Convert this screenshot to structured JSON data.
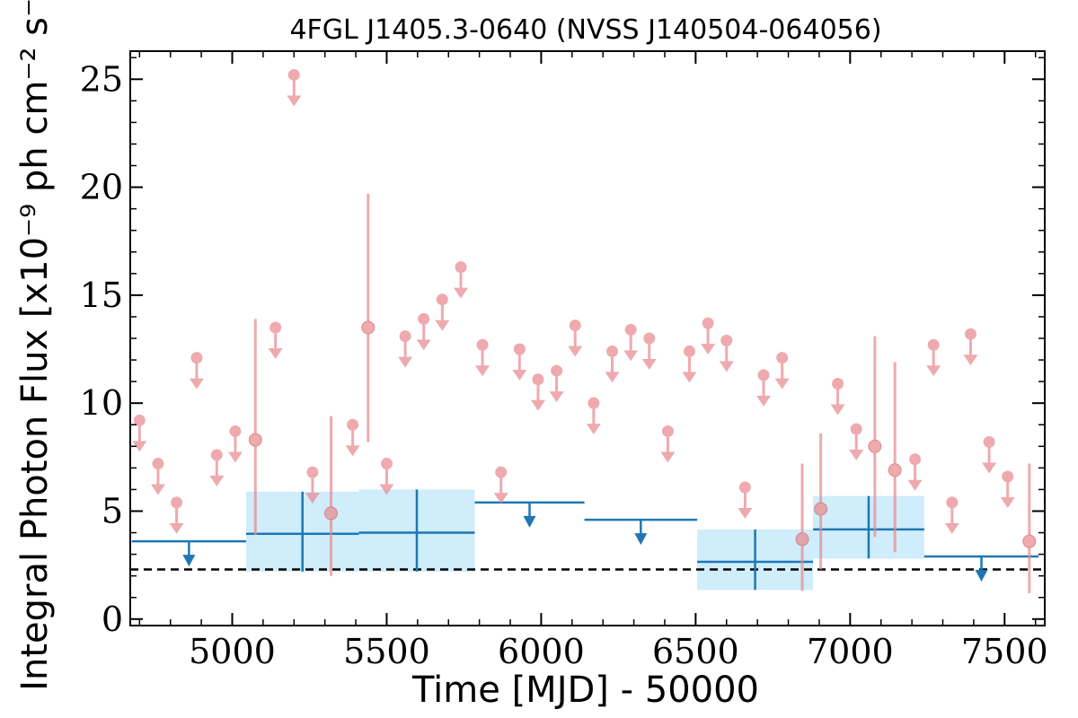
{
  "chart_data": {
    "type": "scatter",
    "title": "4FGL J1405.3-0640 (NVSS J140504-064056)",
    "xlabel": "Time [MJD] - 50000",
    "ylabel": "Integral Photon Flux [x10⁻⁹ ph cm⁻² s⁻¹]",
    "xlim": [
      4670,
      7630
    ],
    "ylim": [
      -0.3,
      26.3
    ],
    "xticks": [
      5000,
      5500,
      6000,
      6500,
      7000,
      7500
    ],
    "yticks": [
      0,
      5,
      10,
      15,
      20,
      25
    ],
    "reference_line": {
      "y": 2.3,
      "style": "dashed",
      "color": "#000000"
    },
    "colors": {
      "fine_bins": "#e88a8f",
      "coarse_bins": "#1f77b4",
      "coarse_band": "#cfedfb"
    },
    "fine_bins_upper_limits": [
      {
        "x": 4700,
        "y": 9.2
      },
      {
        "x": 4760,
        "y": 7.2
      },
      {
        "x": 4820,
        "y": 5.4
      },
      {
        "x": 4885,
        "y": 12.1
      },
      {
        "x": 4950,
        "y": 7.6
      },
      {
        "x": 5010,
        "y": 8.7
      },
      {
        "x": 5140,
        "y": 13.5
      },
      {
        "x": 5200,
        "y": 25.2
      },
      {
        "x": 5260,
        "y": 6.8
      },
      {
        "x": 5390,
        "y": 9.0
      },
      {
        "x": 5500,
        "y": 7.2
      },
      {
        "x": 5560,
        "y": 13.1
      },
      {
        "x": 5620,
        "y": 13.9
      },
      {
        "x": 5680,
        "y": 14.8
      },
      {
        "x": 5740,
        "y": 16.3
      },
      {
        "x": 5810,
        "y": 12.7
      },
      {
        "x": 5870,
        "y": 6.8
      },
      {
        "x": 5930,
        "y": 12.5
      },
      {
        "x": 5990,
        "y": 11.1
      },
      {
        "x": 6050,
        "y": 11.5
      },
      {
        "x": 6110,
        "y": 13.6
      },
      {
        "x": 6170,
        "y": 10.0
      },
      {
        "x": 6230,
        "y": 12.4
      },
      {
        "x": 6290,
        "y": 13.4
      },
      {
        "x": 6350,
        "y": 13.0
      },
      {
        "x": 6410,
        "y": 8.7
      },
      {
        "x": 6480,
        "y": 12.4
      },
      {
        "x": 6540,
        "y": 13.7
      },
      {
        "x": 6600,
        "y": 12.9
      },
      {
        "x": 6660,
        "y": 6.1
      },
      {
        "x": 6720,
        "y": 11.3
      },
      {
        "x": 6780,
        "y": 12.1
      },
      {
        "x": 6960,
        "y": 10.9
      },
      {
        "x": 7020,
        "y": 8.8
      },
      {
        "x": 7210,
        "y": 7.4
      },
      {
        "x": 7270,
        "y": 12.7
      },
      {
        "x": 7330,
        "y": 5.4
      },
      {
        "x": 7390,
        "y": 13.2
      },
      {
        "x": 7450,
        "y": 8.2
      },
      {
        "x": 7510,
        "y": 6.6
      }
    ],
    "fine_bins_detections": [
      {
        "x": 5075,
        "y": 8.3,
        "ylow": 3.9,
        "yhigh": 13.9
      },
      {
        "x": 5320,
        "y": 4.9,
        "ylow": 2.0,
        "yhigh": 9.4
      },
      {
        "x": 5440,
        "y": 13.5,
        "ylow": 8.2,
        "yhigh": 19.7
      },
      {
        "x": 6845,
        "y": 3.7,
        "ylow": 1.3,
        "yhigh": 7.2
      },
      {
        "x": 6905,
        "y": 5.1,
        "ylow": 2.3,
        "yhigh": 8.6
      },
      {
        "x": 7080,
        "y": 8.0,
        "ylow": 3.8,
        "yhigh": 13.1
      },
      {
        "x": 7145,
        "y": 6.9,
        "ylow": 3.1,
        "yhigh": 11.9
      },
      {
        "x": 7580,
        "y": 3.6,
        "ylow": 1.2,
        "yhigh": 7.2
      }
    ],
    "coarse_bins_upper_limits": [
      {
        "x0": 4675,
        "x1": 5045,
        "y": 3.6
      },
      {
        "x0": 5785,
        "x1": 6140,
        "y": 5.4
      },
      {
        "x0": 6140,
        "x1": 6505,
        "y": 4.6
      },
      {
        "x0": 7240,
        "x1": 7610,
        "y": 2.9
      }
    ],
    "coarse_bins_detections": [
      {
        "x0": 5045,
        "x1": 5410,
        "y": 3.95,
        "ylow": 2.2,
        "yhigh": 5.9
      },
      {
        "x0": 5410,
        "x1": 5785,
        "y": 4.0,
        "ylow": 2.2,
        "yhigh": 6.0
      },
      {
        "x0": 6505,
        "x1": 6880,
        "y": 2.65,
        "ylow": 1.35,
        "yhigh": 4.15
      },
      {
        "x0": 6880,
        "x1": 7240,
        "y": 4.15,
        "ylow": 2.8,
        "yhigh": 5.7
      }
    ]
  }
}
